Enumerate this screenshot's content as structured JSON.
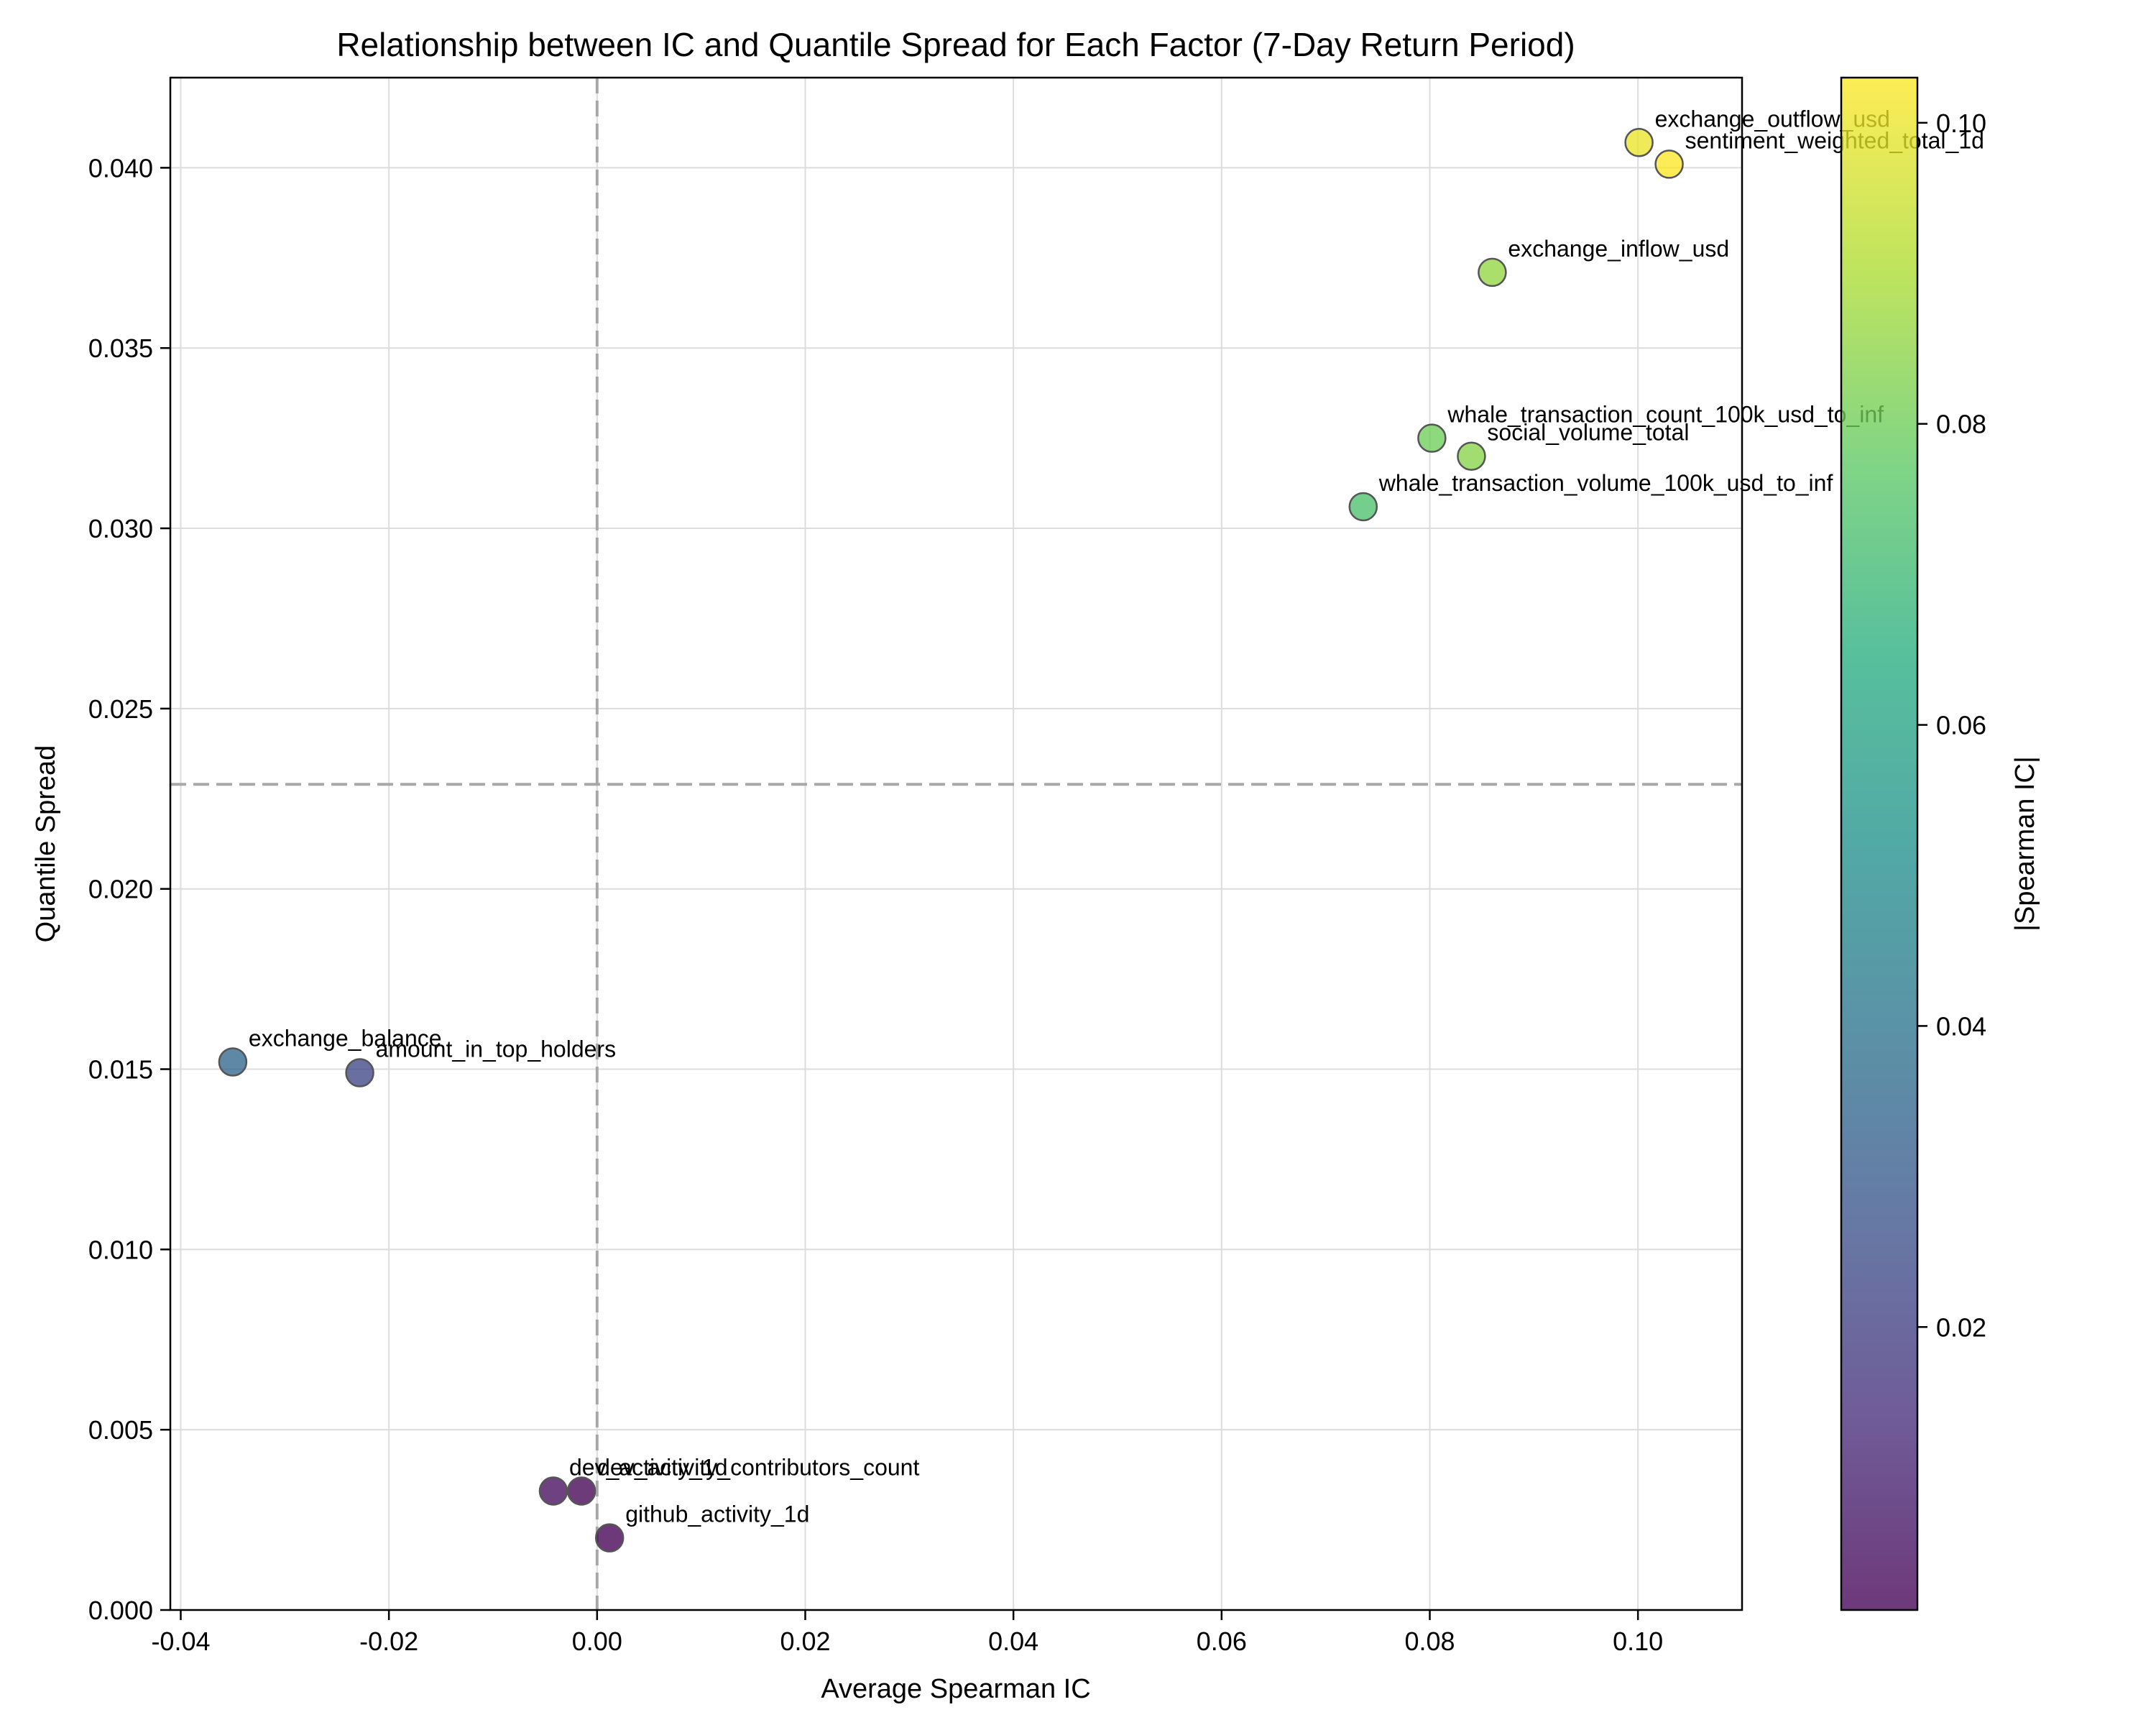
{
  "chart_data": {
    "type": "scatter",
    "title": "Relationship between IC and Quantile Spread for Each Factor (7-Day Return Period)",
    "xlabel": "Average Spearman IC",
    "ylabel": "Quantile Spread",
    "xlim": [
      -0.041,
      0.11
    ],
    "ylim": [
      0.0,
      0.0425
    ],
    "x_ticks": [
      -0.04,
      -0.02,
      0.0,
      0.02,
      0.04,
      0.06,
      0.08,
      0.1
    ],
    "x_tick_labels": [
      "-0.04",
      "-0.02",
      "0.00",
      "0.02",
      "0.04",
      "0.06",
      "0.08",
      "0.10"
    ],
    "y_ticks": [
      0.0,
      0.005,
      0.01,
      0.015,
      0.02,
      0.025,
      0.03,
      0.035,
      0.04
    ],
    "y_tick_labels": [
      "0.000",
      "0.005",
      "0.010",
      "0.015",
      "0.020",
      "0.025",
      "0.030",
      "0.035",
      "0.040"
    ],
    "grid": true,
    "reference_lines": {
      "x": 0.0,
      "y": 0.0229
    },
    "colorbar": {
      "label": "|Spearman IC|",
      "colormap": "viridis",
      "range": [
        0.0012,
        0.103
      ],
      "ticks": [
        0.02,
        0.04,
        0.06,
        0.08,
        0.1
      ],
      "tick_labels": [
        "0.02",
        "0.04",
        "0.06",
        "0.08",
        "0.10"
      ]
    },
    "points": [
      {
        "label": "exchange_outflow_usd",
        "x": 0.1001,
        "y": 0.0407,
        "abs_ic": 0.1001
      },
      {
        "label": "sentiment_weighted_total_1d",
        "x": 0.103,
        "y": 0.0401,
        "abs_ic": 0.103
      },
      {
        "label": "exchange_inflow_usd",
        "x": 0.086,
        "y": 0.0371,
        "abs_ic": 0.086
      },
      {
        "label": "whale_transaction_count_100k_usd_to_inf",
        "x": 0.0802,
        "y": 0.0325,
        "abs_ic": 0.0802
      },
      {
        "label": "social_volume_total",
        "x": 0.084,
        "y": 0.032,
        "abs_ic": 0.084
      },
      {
        "label": "whale_transaction_volume_100k_usd_to_inf",
        "x": 0.0736,
        "y": 0.0306,
        "abs_ic": 0.0736
      },
      {
        "label": "exchange_balance",
        "x": -0.035,
        "y": 0.0152,
        "abs_ic": 0.035
      },
      {
        "label": "amount_in_top_holders",
        "x": -0.0228,
        "y": 0.0149,
        "abs_ic": 0.0228
      },
      {
        "label": "dev_activity_1d",
        "x": -0.0042,
        "y": 0.0033,
        "abs_ic": 0.0042
      },
      {
        "label": "dev_activity_contributors_count",
        "x": -0.0015,
        "y": 0.0033,
        "abs_ic": 0.0015
      },
      {
        "label": "github_activity_1d",
        "x": 0.0012,
        "y": 0.002,
        "abs_ic": 0.0012
      }
    ]
  }
}
